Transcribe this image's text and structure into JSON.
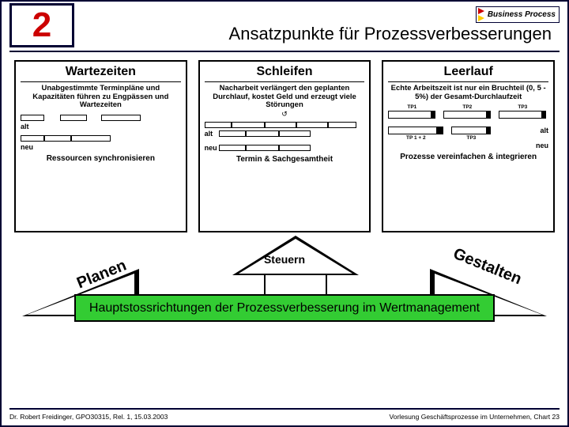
{
  "badge": {
    "text": "Business Process",
    "arrow_colors": [
      "#cc0000",
      "#ffcc00",
      "#009900",
      "#003399"
    ]
  },
  "slide_number": "2",
  "title": "Ansatzpunkte für Prozessverbesserungen",
  "columns": {
    "wait": {
      "heading": "Wartezeiten",
      "desc": "Unabgestimmte Terminpläne und Kapazitäten führen zu Engpässen und Wartezeiten",
      "label_alt": "alt",
      "label_neu": "neu",
      "conclusion": "Ressourcen synchronisieren",
      "alt_bars": [
        30,
        34,
        50
      ],
      "alt_gaps": [
        20,
        18
      ],
      "neu_bars": [
        30,
        34,
        50
      ],
      "bar_fill": "#ffffff",
      "bar_border": "#000000"
    },
    "loops": {
      "heading": "Schleifen",
      "desc": "Nacharbeit verlängert den geplanten Durchlauf, kostet Geld und erzeugt viele Störungen",
      "label_alt": "alt",
      "label_neu": "neu",
      "conclusion": "Termin & Sachgesamtheit",
      "alt_segments_row1": [
        34,
        42,
        40,
        40,
        36
      ],
      "alt_segments_row2": [
        34,
        42,
        40
      ],
      "neu_segments": [
        34,
        42,
        40
      ],
      "seg_fill": "#ffffff",
      "seg_border": "#000000",
      "loop_icon": "↺"
    },
    "idle": {
      "heading": "Leerlauf",
      "desc": "Echte Arbeitszeit ist nur ein Bruchteil (0, 5 - 5%) der Gesamt-Durchlaufzeit",
      "tp_labels_top": [
        "TP1",
        "TP2",
        "TP3"
      ],
      "tp_top_widths": [
        60,
        60,
        60
      ],
      "tp_bottom_labels": [
        "TP 1 + 2",
        "TP3"
      ],
      "tp_bottom_widths": [
        70,
        50
      ],
      "label_alt": "alt",
      "label_neu": "neu",
      "conclusion": "Prozesse vereinfachen & integrieren",
      "cell_fill": "#ffffff",
      "box_fill": "#000000"
    }
  },
  "center_arrow_label": "Steuern",
  "side_labels": {
    "left": "Planen",
    "right": "Gestalten"
  },
  "banner": "Hauptstossrichtungen der Prozessverbesserung im Wertmanagement",
  "banner_bg": "#33cc33",
  "footer": {
    "left": "Dr. Robert Freidinger, GPO30315, Rel. 1, 15.03.2003",
    "right": "Vorlesung Geschäftsprozesse im Unternehmen, Chart 23"
  },
  "frame_color": "#000033"
}
